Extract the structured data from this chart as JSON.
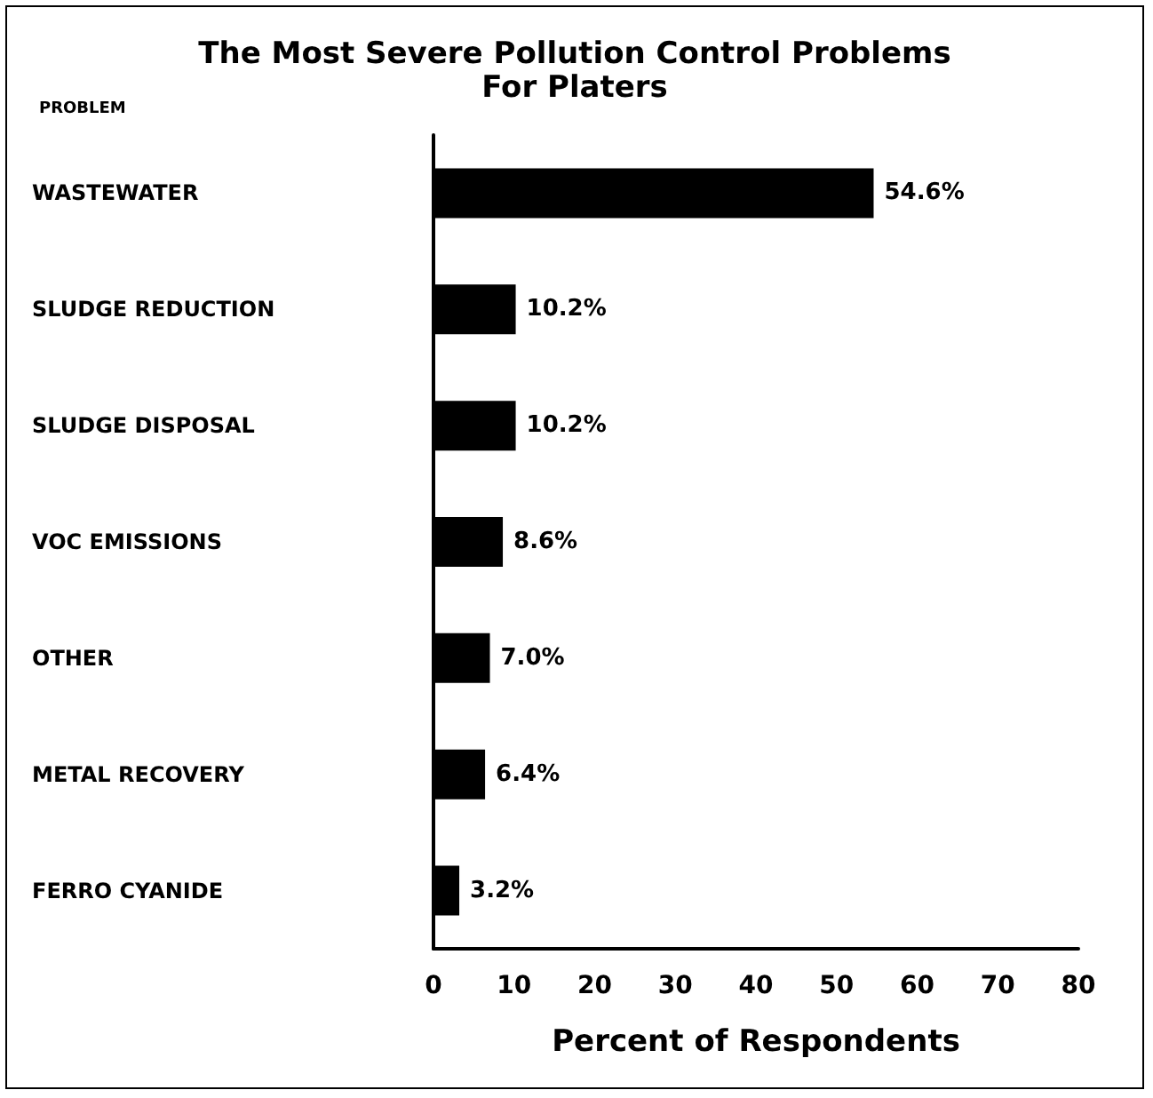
{
  "chart_data": {
    "type": "bar",
    "orientation": "horizontal",
    "title": "The Most Severe Pollution Control Problems\nFor Platers",
    "ylabel": "PROBLEM",
    "xlabel": "Percent of Respondents",
    "categories": [
      "WASTEWATER",
      "SLUDGE REDUCTION",
      "SLUDGE DISPOSAL",
      "VOC EMISSIONS",
      "OTHER",
      "METAL RECOVERY",
      "FERRO CYANIDE"
    ],
    "values": [
      54.6,
      10.2,
      10.2,
      8.6,
      7.0,
      6.4,
      3.2
    ],
    "value_labels": [
      "54.6%",
      "10.2%",
      "10.2%",
      "8.6%",
      "7.0%",
      "6.4%",
      "3.2%"
    ],
    "color": "#000000",
    "xlim": [
      0,
      80
    ],
    "xticks": [
      0,
      10,
      20,
      30,
      40,
      50,
      60,
      70,
      80
    ],
    "grid": false
  }
}
